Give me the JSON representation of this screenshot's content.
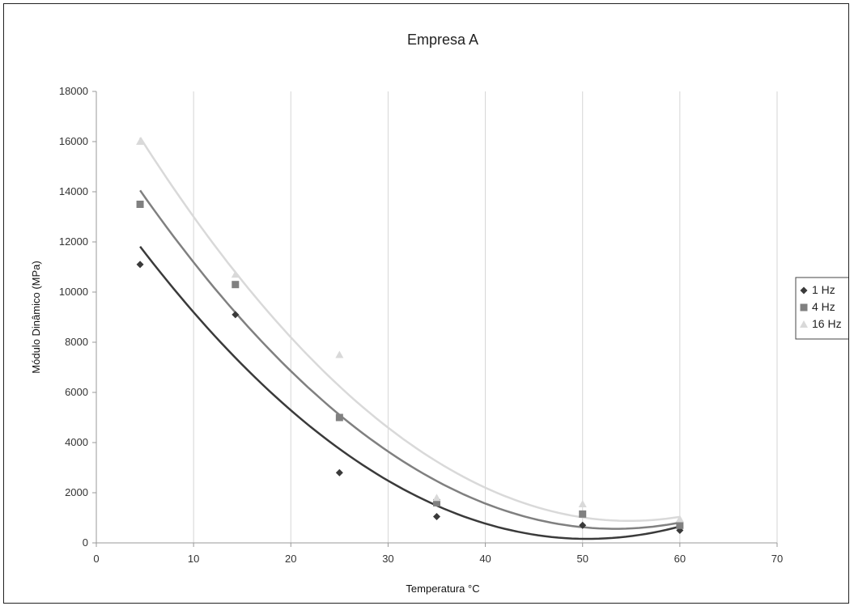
{
  "chart_data": {
    "type": "scatter",
    "title": "Empresa A",
    "xlabel": "Temperatura °C",
    "ylabel": "Módulo Dinâmico (MPa)",
    "xlim": [
      0,
      70
    ],
    "ylim": [
      0,
      18000
    ],
    "x_ticks": [
      0,
      10,
      20,
      30,
      40,
      50,
      60,
      70
    ],
    "y_ticks": [
      0,
      2000,
      4000,
      6000,
      8000,
      10000,
      12000,
      14000,
      16000,
      18000
    ],
    "grid": "vertical",
    "legend": "right",
    "trendline": "polynomial order 2",
    "series": [
      {
        "name": "1 Hz",
        "marker": "diamond",
        "color": "#3a3a3a",
        "x": [
          4.5,
          14.3,
          25,
          35,
          50,
          60
        ],
        "y": [
          11100,
          9100,
          2800,
          1050,
          700,
          500
        ]
      },
      {
        "name": "4 Hz",
        "marker": "square",
        "color": "#808080",
        "x": [
          4.5,
          14.3,
          25,
          35,
          50,
          60
        ],
        "y": [
          13500,
          10300,
          5000,
          1600,
          1150,
          700
        ]
      },
      {
        "name": "16 Hz",
        "marker": "triangle",
        "color": "#d9d9d9",
        "x": [
          4.5,
          14.3,
          25,
          35,
          50,
          60
        ],
        "y": [
          16000,
          10700,
          7500,
          1800,
          1550,
          950
        ]
      }
    ]
  }
}
